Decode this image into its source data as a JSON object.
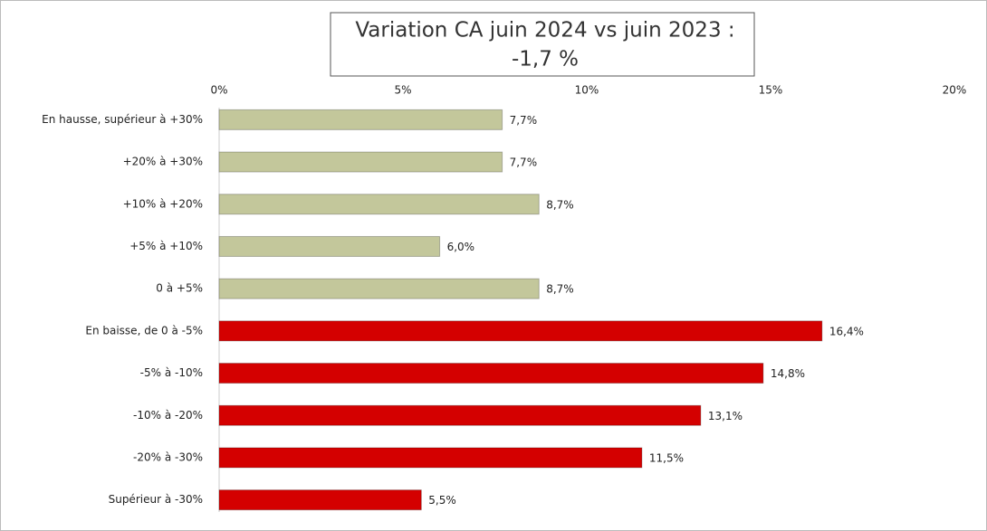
{
  "chart_data": {
    "type": "barh",
    "title": [
      "Variation CA juin 2024 vs juin 2023 :",
      "-1,7 %"
    ],
    "categories": [
      "En hausse, supérieur à +30%",
      "+20% à +30%",
      "+10% à +20%",
      "+5% à +10%",
      "0 à +5%",
      "En baisse, de 0 à -5%",
      "-5% à -10%",
      "-10% à -20%",
      "-20% à -30%",
      "Supérieur à -30%"
    ],
    "values": [
      7.7,
      7.7,
      8.7,
      6.0,
      8.7,
      16.4,
      14.8,
      13.1,
      11.5,
      5.5
    ],
    "value_labels": [
      "7,7%",
      "7,7%",
      "8,7%",
      "6,0%",
      "8,7%",
      "16,4%",
      "14,8%",
      "13,1%",
      "11,5%",
      "5,5%"
    ],
    "colors": [
      "#c3c79b",
      "#c3c79b",
      "#c3c79b",
      "#c3c79b",
      "#c3c79b",
      "#d40000",
      "#d40000",
      "#d40000",
      "#d40000",
      "#d40000"
    ],
    "xlim": [
      0,
      20
    ],
    "xticks": [
      {
        "value": 0,
        "label": "0%"
      },
      {
        "value": 5,
        "label": "5%"
      },
      {
        "value": 10,
        "label": "10%"
      },
      {
        "value": 15,
        "label": "15%"
      },
      {
        "value": 20,
        "label": "20%"
      }
    ],
    "grid": false
  }
}
